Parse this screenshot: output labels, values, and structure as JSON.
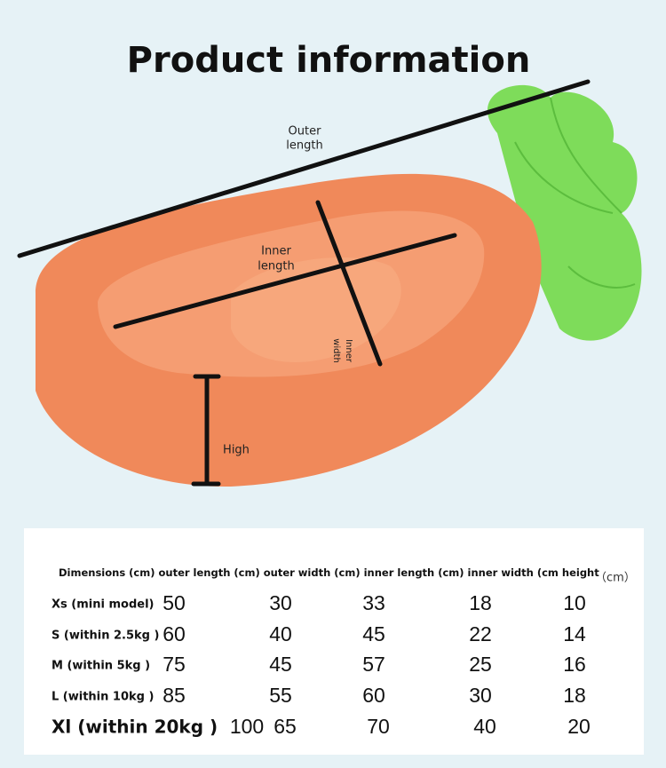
{
  "header": {
    "title": "Product information"
  },
  "labels": {
    "outer_length": [
      "Outer",
      "length"
    ],
    "inner_length": [
      "Inner",
      "length"
    ],
    "inner_width": [
      "Inner",
      "width"
    ],
    "high": "High"
  },
  "table": {
    "columns": [
      "Dimensions (cm)",
      "outer length (cm)",
      "outer width (cm)",
      "inner length (cm)",
      "inner width (cm",
      "height"
    ],
    "unit": "（cm）",
    "rows": [
      [
        "Xs (mini model)",
        50,
        30,
        33,
        18,
        10
      ],
      [
        "S (within 2.5kg )",
        60,
        40,
        45,
        22,
        14
      ],
      [
        "M (within 5kg )",
        75,
        45,
        57,
        25,
        16
      ],
      [
        "L (within 10kg )",
        85,
        55,
        60,
        30,
        18
      ],
      [
        "Xl (within 20kg )",
        100,
        65,
        70,
        40,
        20
      ]
    ]
  }
}
